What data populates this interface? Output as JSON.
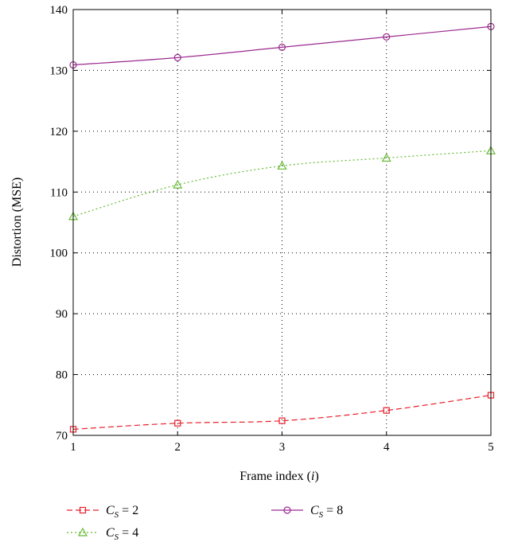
{
  "chart_data": {
    "type": "line",
    "xlabel": "Frame index (",
    "xlabel_var": "i",
    "xlabel_end": ")",
    "ylabel": "Distortion (MSE)",
    "xlim": [
      1,
      5
    ],
    "ylim": [
      70,
      140
    ],
    "x_ticks": [
      "1",
      "2",
      "3",
      "4",
      "5"
    ],
    "y_ticks": [
      "70",
      "80",
      "90",
      "100",
      "110",
      "120",
      "130",
      "140"
    ],
    "grid": true,
    "legend_position": "bottom",
    "x": [
      1,
      2,
      3,
      4,
      5
    ],
    "series": [
      {
        "name": "C_S = 2",
        "legend_var": "C",
        "legend_sub": "S",
        "legend_rest": " = 2",
        "color": "#e8202a",
        "marker": "square",
        "line_style": "dashed",
        "values": [
          71.0,
          72.0,
          72.4,
          74.1,
          76.6
        ]
      },
      {
        "name": "C_S = 4",
        "legend_var": "C",
        "legend_sub": "S",
        "legend_rest": " = 4",
        "color": "#66bb33",
        "marker": "triangle",
        "line_style": "dotted",
        "values": [
          106.0,
          111.2,
          114.3,
          115.6,
          116.8
        ]
      },
      {
        "name": "C_S = 8",
        "legend_var": "C",
        "legend_sub": "S",
        "legend_rest": " = 8",
        "color": "#9b2a8f",
        "marker": "circle",
        "line_style": "solid",
        "values": [
          130.9,
          132.1,
          133.8,
          135.5,
          137.2
        ]
      }
    ]
  }
}
